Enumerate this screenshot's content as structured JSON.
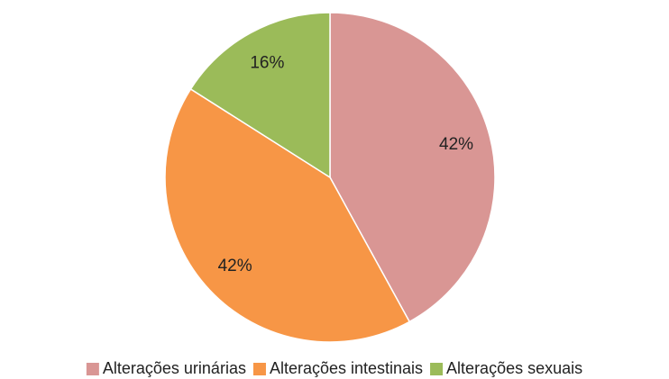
{
  "chart_data": {
    "type": "pie",
    "categories": [
      "Alterações urinárias",
      "Alterações intestinais",
      "Alterações sexuais"
    ],
    "values": [
      42,
      42,
      16
    ],
    "value_labels": [
      "42%",
      "42%",
      "16%"
    ],
    "colors": [
      "#d99694",
      "#f79646",
      "#9bbb59"
    ],
    "legend": "bottom"
  }
}
